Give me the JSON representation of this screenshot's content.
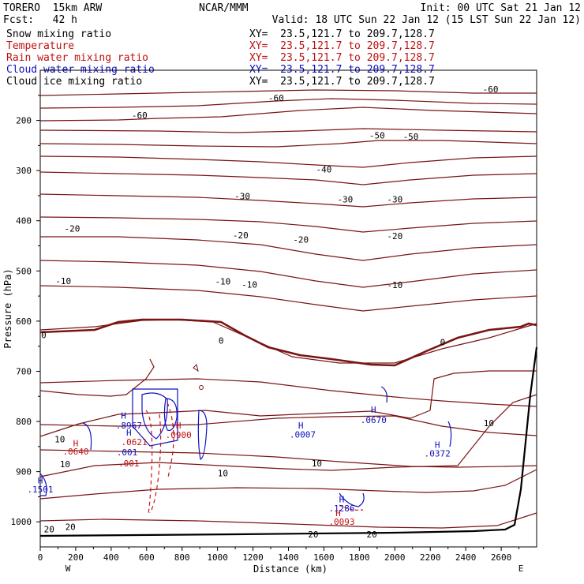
{
  "header": {
    "model": "TORERO  15km ARW",
    "center": "NCAR/MMM",
    "init": "Init: 00 UTC Sat 21 Jan 12",
    "fcst": "Fcst:   42 h",
    "valid": "Valid: 18 UTC Sun 22 Jan 12 (15 LST Sun 22 Jan 12)"
  },
  "legend": [
    {
      "label": "Snow mixing ratio",
      "xy": "XY=  23.5,121.7 to 209.7,128.7",
      "color": "#000000"
    },
    {
      "label": "Temperature",
      "xy": "XY=  23.5,121.7 to 209.7,128.7",
      "color": "#c01010"
    },
    {
      "label": "Rain water mixing ratio",
      "xy": "XY=  23.5,121.7 to 209.7,128.7",
      "color": "#c01010"
    },
    {
      "label": "Cloud water mixing ratio",
      "xy": "XY=  23.5,121.7 to 209.7,128.7",
      "color": "#1010c0"
    },
    {
      "label": "Cloud ice mixing ratio",
      "xy": "XY=  23.5,121.7 to 209.7,128.7",
      "color": "#000000"
    }
  ],
  "chart_data": {
    "type": "line",
    "xlabel": "Distance (km)",
    "ylabel": "Pressure (hPa)",
    "xlim": [
      0,
      2800
    ],
    "ylim": [
      1050,
      100
    ],
    "x_ticks": [
      0,
      200,
      400,
      600,
      800,
      1000,
      1200,
      1400,
      1600,
      1800,
      2000,
      2200,
      2400,
      2600
    ],
    "y_ticks": [
      200,
      300,
      400,
      500,
      600,
      700,
      800,
      900,
      1000
    ],
    "x_end_left": "W",
    "x_end_right": "E",
    "temperature_labels": [
      {
        "x": 2540,
        "p": 138,
        "text": "-60"
      },
      {
        "x": 1330,
        "p": 155,
        "text": "-60"
      },
      {
        "x": 560,
        "p": 190,
        "text": "-60"
      },
      {
        "x": 1900,
        "p": 230,
        "text": "-50"
      },
      {
        "x": 2090,
        "p": 232,
        "text": "-50"
      },
      {
        "x": 1600,
        "p": 297,
        "text": "-40"
      },
      {
        "x": 1140,
        "p": 351,
        "text": "-30"
      },
      {
        "x": 1720,
        "p": 357,
        "text": "-30"
      },
      {
        "x": 2000,
        "p": 357,
        "text": "-30"
      },
      {
        "x": 180,
        "p": 415,
        "text": "-20"
      },
      {
        "x": 1130,
        "p": 429,
        "text": "-20"
      },
      {
        "x": 1470,
        "p": 437,
        "text": "-20"
      },
      {
        "x": 2000,
        "p": 430,
        "text": "-20"
      },
      {
        "x": 130,
        "p": 520,
        "text": "-10"
      },
      {
        "x": 1030,
        "p": 521,
        "text": "-10"
      },
      {
        "x": 1180,
        "p": 527,
        "text": "-10"
      },
      {
        "x": 2000,
        "p": 528,
        "text": "-10"
      },
      {
        "x": 20,
        "p": 628,
        "text": "0"
      },
      {
        "x": 1020,
        "p": 639,
        "text": "0"
      },
      {
        "x": 2270,
        "p": 642,
        "text": "0"
      },
      {
        "x": 2530,
        "p": 803,
        "text": "10"
      },
      {
        "x": 110,
        "p": 835,
        "text": "10"
      },
      {
        "x": 1560,
        "p": 883,
        "text": "10"
      },
      {
        "x": 140,
        "p": 885,
        "text": "10"
      },
      {
        "x": 1030,
        "p": 903,
        "text": "10"
      },
      {
        "x": 170,
        "p": 1010,
        "text": "20"
      },
      {
        "x": 50,
        "p": 1015,
        "text": "20"
      },
      {
        "x": 1540,
        "p": 1025,
        "text": "20"
      },
      {
        "x": 1870,
        "p": 1025,
        "text": "20"
      }
    ],
    "maxima_labels": [
      {
        "x": 470,
        "p": 788,
        "text": "H",
        "color": "#1010c0"
      },
      {
        "x": 500,
        "p": 808,
        "text": ".8967",
        "color": "#1010c0"
      },
      {
        "x": 500,
        "p": 822,
        "text": "H",
        "color": "#1010c0"
      },
      {
        "x": 530,
        "p": 841,
        "text": ".0621",
        "color": "#c01010"
      },
      {
        "x": 490,
        "p": 861,
        "text": ".001",
        "color": "#1010c0"
      },
      {
        "x": 500,
        "p": 883,
        "text": ".001",
        "color": "#c01010"
      },
      {
        "x": 780,
        "p": 808,
        "text": "H",
        "color": "#c01010"
      },
      {
        "x": 780,
        "p": 827,
        "text": ".0900",
        "color": "#c01010"
      },
      {
        "x": 200,
        "p": 843,
        "text": "H",
        "color": "#c01010"
      },
      {
        "x": 200,
        "p": 860,
        "text": ".0640",
        "color": "#c01010"
      },
      {
        "x": 1470,
        "p": 808,
        "text": "H",
        "color": "#1010c0"
      },
      {
        "x": 1480,
        "p": 826,
        "text": ".0007",
        "color": "#1010c0"
      },
      {
        "x": 1880,
        "p": 776,
        "text": "H",
        "color": "#1010c0"
      },
      {
        "x": 1880,
        "p": 797,
        "text": ".0670",
        "color": "#1010c0"
      },
      {
        "x": 2240,
        "p": 846,
        "text": "H",
        "color": "#1010c0"
      },
      {
        "x": 2240,
        "p": 864,
        "text": ".0372",
        "color": "#1010c0"
      },
      {
        "x": 0,
        "p": 917,
        "text": "H",
        "color": "#1010c0"
      },
      {
        "x": 0,
        "p": 935,
        "text": ".1501",
        "color": "#1010c0"
      },
      {
        "x": 1700,
        "p": 955,
        "text": "H",
        "color": "#1010c0"
      },
      {
        "x": 1700,
        "p": 973,
        "text": ".1286",
        "color": "#1010c0"
      },
      {
        "x": 1680,
        "p": 982,
        "text": "H",
        "color": "#c01010"
      },
      {
        "x": 1700,
        "p": 1000,
        "text": ".0093",
        "color": "#c01010"
      }
    ]
  }
}
